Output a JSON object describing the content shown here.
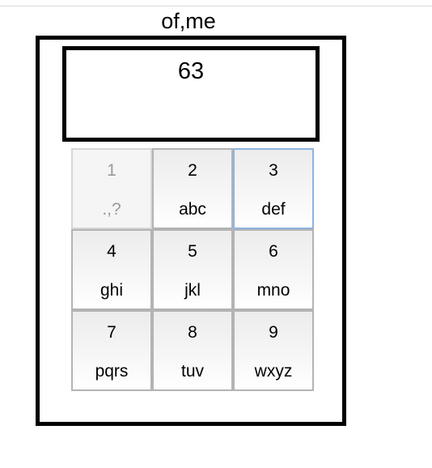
{
  "title": "of,me",
  "display": {
    "value": "63"
  },
  "keypad": {
    "keys": [
      {
        "digit": "1",
        "letters": ".,?",
        "state": "disabled"
      },
      {
        "digit": "2",
        "letters": "abc",
        "state": "normal"
      },
      {
        "digit": "3",
        "letters": "def",
        "state": "focused"
      },
      {
        "digit": "4",
        "letters": "ghi",
        "state": "normal"
      },
      {
        "digit": "5",
        "letters": "jkl",
        "state": "normal"
      },
      {
        "digit": "6",
        "letters": "mno",
        "state": "normal"
      },
      {
        "digit": "7",
        "letters": "pqrs",
        "state": "normal"
      },
      {
        "digit": "8",
        "letters": "tuv",
        "state": "normal"
      },
      {
        "digit": "9",
        "letters": "wxyz",
        "state": "normal"
      }
    ]
  },
  "colors": {
    "focus_border": "#8fb3e0",
    "key_border": "#b3b3b3",
    "disabled_text": "#9a9a9a"
  }
}
